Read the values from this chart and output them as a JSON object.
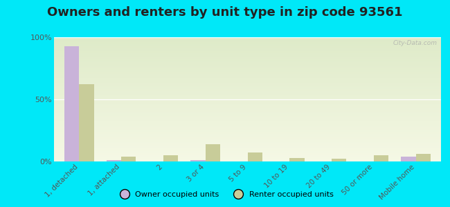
{
  "title": "Owners and renters by unit type in zip code 93561",
  "categories": [
    "1, detached",
    "1, attached",
    "2",
    "3 or 4",
    "5 to 9",
    "10 to 19",
    "20 to 49",
    "50 or more",
    "Mobile home"
  ],
  "owner_values": [
    93,
    1,
    0,
    1,
    0,
    0,
    0,
    0,
    4
  ],
  "renter_values": [
    62,
    4,
    5,
    14,
    7,
    3,
    2,
    5,
    6
  ],
  "owner_color": "#c9b3d9",
  "renter_color": "#c8cc99",
  "background_outer": "#00e8f8",
  "ylim": [
    0,
    100
  ],
  "yticks": [
    0,
    50,
    100
  ],
  "ytick_labels": [
    "0%",
    "50%",
    "100%"
  ],
  "bar_width": 0.35,
  "legend_owner": "Owner occupied units",
  "legend_renter": "Renter occupied units",
  "title_fontsize": 13,
  "watermark": "City-Data.com"
}
